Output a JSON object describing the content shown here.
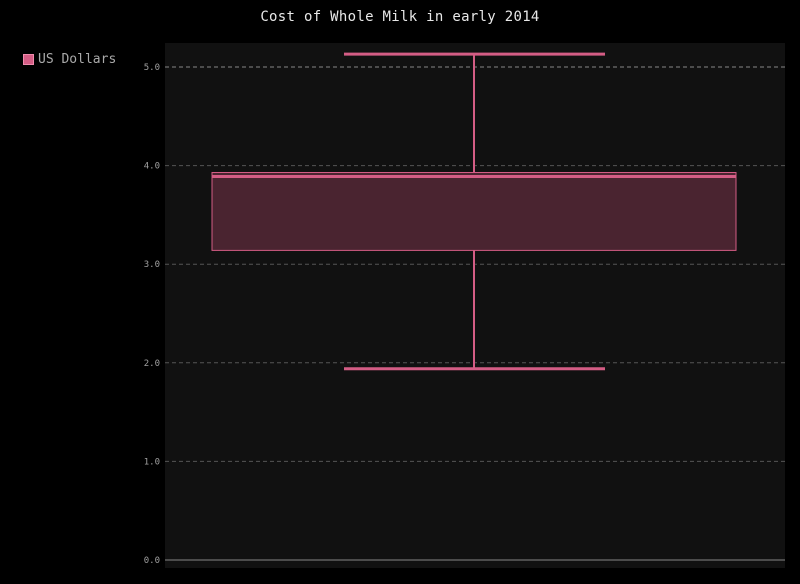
{
  "chart_data": {
    "type": "box",
    "title": "Cost of Whole Milk in early 2014",
    "legend": {
      "placement": "top-left",
      "entries": [
        "US Dollars"
      ]
    },
    "ylim": [
      0,
      5.25
    ],
    "yticks": [
      "0.0",
      "1.0",
      "2.0",
      "3.0",
      "4.0",
      "5.0"
    ],
    "series": [
      {
        "name": "US Dollars",
        "min": 1.94,
        "q1": 3.14,
        "median": 3.89,
        "q3": 3.93,
        "max": 5.13
      }
    ],
    "grid": true,
    "colors": {
      "series": "#d45d85",
      "box_fill": "#4a2430",
      "plot_bg": "#111111",
      "page_bg": "#000000",
      "grid": "#555555"
    }
  }
}
